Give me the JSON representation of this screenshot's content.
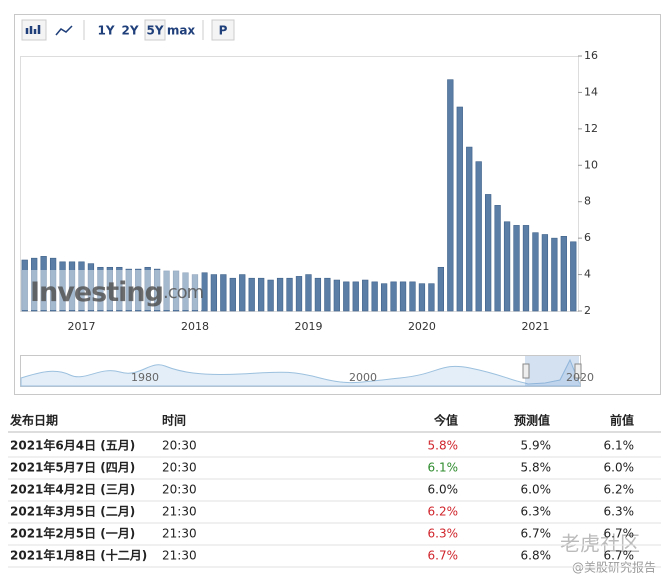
{
  "chart_data": {
    "type": "bar",
    "toolbar": [
      "1Y",
      "2Y",
      "5Y",
      "max",
      "P"
    ],
    "watermark": [
      "Investing",
      ".com"
    ],
    "categories": [
      null,
      null,
      null,
      null,
      null,
      null,
      "2017",
      null,
      null,
      null,
      null,
      null,
      null,
      null,
      null,
      null,
      null,
      null,
      "2018",
      null,
      null,
      null,
      null,
      null,
      null,
      null,
      null,
      null,
      null,
      null,
      "2019",
      null,
      null,
      null,
      null,
      null,
      null,
      null,
      null,
      null,
      null,
      null,
      "2020",
      null,
      null,
      null,
      null,
      null,
      null,
      null,
      null,
      null,
      null,
      null,
      "2021",
      null,
      null,
      null,
      null
    ],
    "values": [
      4.8,
      4.9,
      5.0,
      4.9,
      4.7,
      4.7,
      4.7,
      4.6,
      4.4,
      4.4,
      4.4,
      4.3,
      4.3,
      4.4,
      4.3,
      4.2,
      4.2,
      4.1,
      4.0,
      4.1,
      4.0,
      4.0,
      3.8,
      4.0,
      3.8,
      3.8,
      3.7,
      3.8,
      3.8,
      3.9,
      4.0,
      3.8,
      3.8,
      3.7,
      3.6,
      3.6,
      3.7,
      3.6,
      3.5,
      3.6,
      3.6,
      3.6,
      3.5,
      3.5,
      4.4,
      14.7,
      13.2,
      11.0,
      10.2,
      8.4,
      7.8,
      6.9,
      6.7,
      6.7,
      6.3,
      6.2,
      6.0,
      6.1,
      5.8
    ],
    "color": "#5a7ea6",
    "ylim": [
      2,
      16
    ],
    "yticks": [
      2,
      4,
      6,
      8,
      10,
      12,
      14,
      16
    ],
    "navigator_labels": [
      "1980",
      "2000",
      "2020"
    ]
  },
  "table": {
    "header": [
      "发布日期",
      "时间",
      "今值",
      "预测值",
      "前值"
    ],
    "rows": [
      [
        "2021年6月4日 (五月)",
        "20:30",
        "5.8%",
        "5.9%",
        "6.1%"
      ],
      [
        "2021年5月7日 (四月)",
        "20:30",
        "6.1%",
        "5.8%",
        "6.0%"
      ],
      [
        "2021年4月2日 (三月)",
        "20:30",
        "6.0%",
        "6.0%",
        "6.2%"
      ],
      [
        "2021年3月5日 (二月)",
        "21:30",
        "6.2%",
        "6.3%",
        "6.3%"
      ],
      [
        "2021年2月5日 (一月)",
        "21:30",
        "6.3%",
        "6.7%",
        "6.7%"
      ],
      [
        "2021年1月8日 (十二月)",
        "21:30",
        "6.7%",
        "6.8%",
        "6.7%"
      ]
    ],
    "actual_colors": [
      "#d0252c",
      "#2e8b2e",
      "#222222",
      "#d0252c",
      "#d0252c",
      "#d0252c"
    ]
  },
  "footer": {
    "brand": "老虎社区",
    "author": "@美股研究报告"
  }
}
